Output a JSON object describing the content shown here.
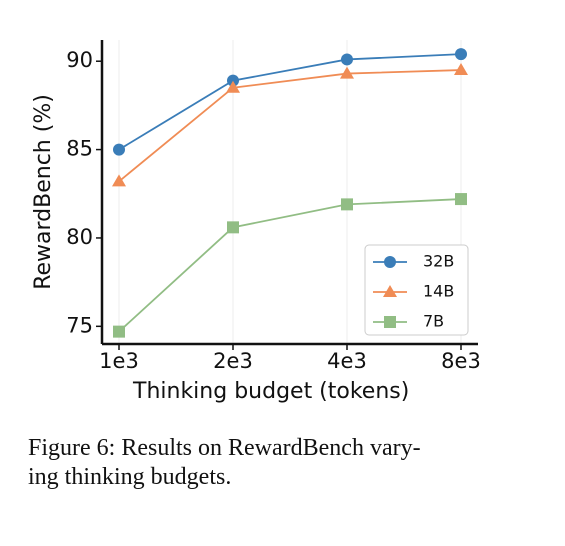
{
  "chart_data": {
    "type": "line",
    "xlabel": "Thinking budget (tokens)",
    "ylabel": "RewardBench (%)",
    "categories": [
      "1e3",
      "2e3",
      "4e3",
      "8e3"
    ],
    "series": [
      {
        "name": "32B",
        "color": "#3a7db8",
        "marker": "circle",
        "values": [
          85.0,
          88.9,
          90.1,
          90.4
        ]
      },
      {
        "name": "14B",
        "color": "#f08c55",
        "marker": "triangle",
        "values": [
          83.2,
          88.5,
          89.3,
          89.5
        ]
      },
      {
        "name": "7B",
        "color": "#91bd84",
        "marker": "square",
        "values": [
          74.7,
          80.6,
          81.9,
          82.2
        ]
      }
    ],
    "ylim": [
      74,
      91.2
    ],
    "yticks": [
      75,
      80,
      85,
      90
    ],
    "grid": true,
    "legend": "lower right",
    "caption": [
      "Figure 6: Results on RewardBench vary-",
      "ing thinking budgets."
    ]
  }
}
